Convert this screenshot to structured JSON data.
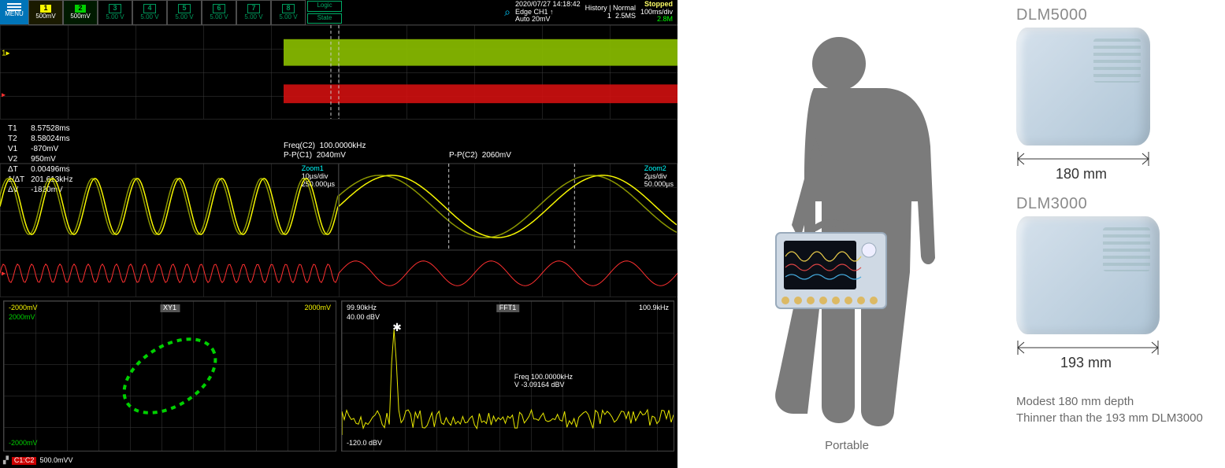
{
  "scope": {
    "menu_label": "MENU",
    "channels": [
      {
        "n": "1",
        "scale": "500mV",
        "active": true,
        "color": "#f7f700"
      },
      {
        "n": "2",
        "scale": "500mV",
        "active": true,
        "color": "#00d000"
      },
      {
        "n": "3",
        "scale": "5.00 V",
        "active": false,
        "color": "#00c0c0"
      },
      {
        "n": "4",
        "scale": "5.00 V",
        "active": false,
        "color": "#00c0c0"
      },
      {
        "n": "5",
        "scale": "5.00 V",
        "active": false,
        "color": "#00c0c0"
      },
      {
        "n": "6",
        "scale": "5.00 V",
        "active": false,
        "color": "#00c0c0"
      },
      {
        "n": "7",
        "scale": "5.00 V",
        "active": false,
        "color": "#00c0c0"
      },
      {
        "n": "8",
        "scale": "5.00 V",
        "active": false,
        "color": "#00c0c0"
      }
    ],
    "logic_label": "Logic",
    "state_label": "State",
    "datetime": "2020/07/27 14:18:42",
    "trig_line1": "Edge CH1 ↑",
    "trig_line2": "Auto 20mV",
    "history_label": "History",
    "history_mode": "Normal",
    "history_idx": "1",
    "rate": "2.5MS",
    "status": "Stopped",
    "tb_main": "100ms/div",
    "rec_len": "2.8M",
    "cursor_values": [
      [
        "T1",
        "8.57528ms"
      ],
      [
        "T2",
        "8.58024ms"
      ],
      [
        "V1",
        "-870mV"
      ],
      [
        "V2",
        "950mV"
      ],
      [
        "ΔT",
        "0.00496ms"
      ],
      [
        "1/ΔT",
        "201.613kHz"
      ],
      [
        "ΔV",
        "-1820mV"
      ]
    ],
    "pp_c1_label": "P-P(C1)",
    "pp_c1_val": "2040mV",
    "freq_c2_label": "Freq(C2)",
    "freq_c2_val": "100.0000kHz",
    "pp_c2_label": "P-P(C2)",
    "pp_c2_val": "2060mV",
    "zoom1": {
      "title": "Zoom1",
      "tb": "10µs/div",
      "offset": "250.000µs"
    },
    "zoom2": {
      "title": "Zoom2",
      "tb": "2µs/div",
      "offset": "50.000µs"
    },
    "xy": {
      "title": "XY1",
      "x_neg": "-2000mV",
      "x_pos": "2000mV",
      "y_pos": "2000mV",
      "y_neg": "-2000mV",
      "color": "#00d000"
    },
    "fft": {
      "title": "FFT1",
      "left_freq": "99.90kHz",
      "right_freq": "100.9kHz",
      "top_db": "40.00 dBV",
      "bot_db": "-120.0 dBV",
      "peak_freq_label": "Freq",
      "peak_freq": "100.0000kHz",
      "peak_v_label": "V",
      "peak_v": "-3.09164 dBV",
      "color": "#e8e800"
    },
    "footer": {
      "badge": "C1:C2",
      "val": "500.0mVV"
    },
    "colors": {
      "ch1": "#f7f700",
      "ch2": "#00d000",
      "red": "#ff3030",
      "cyan": "#00ffff",
      "bg": "#000000",
      "grid": "#3a3a3a"
    }
  },
  "middle": {
    "caption": "Portable",
    "silhouette_color": "#7b7b7b",
    "scope_screen_bg": "#0b0f17"
  },
  "right": {
    "products": [
      {
        "name": "DLM5000",
        "depth": "180 mm",
        "arrow_w": 170
      },
      {
        "name": "DLM3000",
        "depth": "193 mm",
        "arrow_w": 182
      }
    ],
    "note_line1": "Modest 180 mm depth",
    "note_line2": "Thinner than the 193 mm DLM3000"
  }
}
